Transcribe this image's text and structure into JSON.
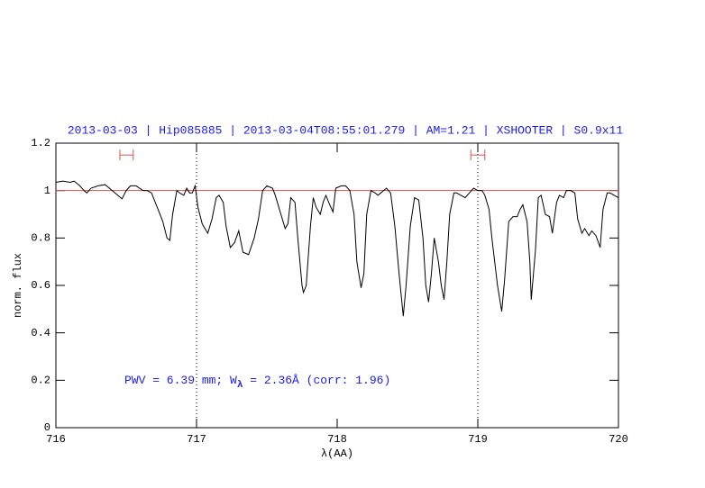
{
  "chart_data": {
    "type": "line",
    "title": "2013-03-03 | Hip085885 | 2013-03-04T08:55:01.279 | AM=1.21 | XSHOOTER | S0.9x11",
    "xlabel": "λ(AA)",
    "ylabel": "norm. flux",
    "annotation": [
      "PWV = 6.39 mm; W",
      "λ",
      " = 2.36Å (corr: 1.96)"
    ],
    "xlim": [
      716,
      720
    ],
    "ylim": [
      0,
      1.2
    ],
    "xticks": [
      716,
      717,
      718,
      719,
      720
    ],
    "yticks": [
      0,
      0.2,
      0.4,
      0.6,
      0.8,
      1,
      1.2
    ],
    "hline": 1,
    "hline_color": "#e05050",
    "vlines": [
      717,
      719
    ],
    "ranges": [
      [
        716.455,
        716.55
      ],
      [
        718.95,
        719.05
      ]
    ],
    "range_y": 1.15,
    "range_color": "#e05050",
    "x": [
      716.0,
      716.05,
      716.1,
      716.13,
      716.17,
      716.2,
      716.22,
      716.25,
      716.3,
      716.35,
      716.4,
      716.44,
      716.47,
      716.5,
      716.53,
      716.57,
      716.62,
      716.65,
      716.68,
      716.72,
      716.76,
      716.79,
      716.81,
      716.83,
      716.86,
      716.88,
      716.91,
      716.93,
      716.95,
      716.97,
      716.99,
      717.01,
      717.04,
      717.08,
      717.11,
      717.14,
      717.16,
      717.19,
      717.21,
      717.24,
      717.27,
      717.3,
      717.33,
      717.37,
      717.41,
      717.44,
      717.47,
      717.5,
      717.54,
      717.56,
      717.6,
      717.63,
      717.65,
      717.67,
      717.7,
      717.72,
      717.75,
      717.76,
      717.78,
      717.81,
      717.83,
      717.85,
      717.88,
      717.9,
      717.92,
      717.94,
      717.97,
      717.99,
      718.03,
      718.06,
      718.09,
      718.12,
      718.14,
      718.17,
      718.19,
      718.21,
      718.24,
      718.27,
      718.29,
      718.33,
      718.35,
      718.38,
      718.41,
      718.44,
      718.47,
      718.49,
      718.52,
      718.55,
      718.58,
      718.61,
      718.63,
      718.65,
      718.67,
      718.69,
      718.72,
      718.74,
      718.76,
      718.78,
      718.8,
      718.83,
      718.85,
      718.88,
      718.91,
      718.94,
      718.97,
      719.0,
      719.03,
      719.05,
      719.08,
      719.1,
      719.14,
      719.17,
      719.19,
      719.22,
      719.25,
      719.28,
      719.3,
      719.32,
      719.35,
      719.37,
      719.38,
      719.41,
      719.43,
      719.45,
      719.48,
      719.51,
      719.53,
      719.56,
      719.58,
      719.61,
      719.63,
      719.66,
      719.69,
      719.71,
      719.74,
      719.76,
      719.79,
      719.81,
      719.84,
      719.87,
      719.89,
      719.92,
      719.94,
      719.97,
      720.0
    ],
    "series": [
      {
        "color": "#000000",
        "values": [
          1.035,
          1.04,
          1.035,
          1.04,
          1.02,
          1.0,
          0.99,
          1.01,
          1.02,
          1.025,
          1.0,
          0.98,
          0.965,
          1.0,
          1.02,
          1.02,
          1.0,
          1.0,
          0.99,
          0.93,
          0.87,
          0.8,
          0.79,
          0.9,
          1.0,
          0.99,
          0.98,
          1.01,
          0.99,
          0.99,
          1.02,
          0.93,
          0.86,
          0.82,
          0.88,
          0.97,
          0.98,
          0.95,
          0.85,
          0.76,
          0.78,
          0.83,
          0.74,
          0.73,
          0.8,
          0.88,
          1.0,
          1.02,
          1.01,
          0.98,
          0.9,
          0.84,
          0.86,
          0.97,
          0.95,
          0.8,
          0.6,
          0.57,
          0.6,
          0.85,
          0.97,
          0.93,
          0.9,
          0.95,
          0.98,
          0.95,
          0.91,
          1.01,
          1.02,
          1.02,
          1.0,
          0.9,
          0.7,
          0.59,
          0.65,
          0.9,
          1.0,
          0.99,
          0.98,
          1.0,
          1.01,
          0.99,
          0.85,
          0.65,
          0.47,
          0.6,
          0.85,
          0.97,
          0.96,
          0.8,
          0.6,
          0.53,
          0.65,
          0.8,
          0.7,
          0.6,
          0.54,
          0.7,
          0.9,
          0.99,
          0.99,
          0.98,
          0.97,
          0.99,
          1.01,
          1.0,
          1.0,
          0.98,
          0.92,
          0.8,
          0.6,
          0.49,
          0.62,
          0.87,
          0.89,
          0.89,
          0.92,
          0.94,
          0.87,
          0.7,
          0.54,
          0.75,
          0.97,
          0.98,
          0.9,
          0.89,
          0.82,
          0.95,
          0.98,
          0.97,
          1.0,
          1.0,
          0.99,
          0.88,
          0.82,
          0.84,
          0.81,
          0.83,
          0.81,
          0.76,
          0.92,
          0.99,
          0.99,
          0.98,
          0.97
        ]
      }
    ],
    "title_color": "#1a1aff"
  }
}
